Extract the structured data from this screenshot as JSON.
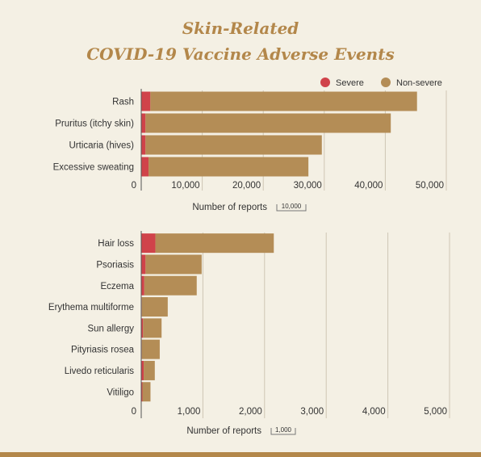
{
  "title_lines": [
    "Skin-Related",
    "COVID-19 Vaccine Adverse Events"
  ],
  "colors": {
    "severe": "#d0434a",
    "non_severe": "#b48d56",
    "grid": "#cfc6b4",
    "text": "#333333"
  },
  "legend": {
    "severe_label": "Severe",
    "non_severe_label": "Non-severe",
    "placement": "top-right"
  },
  "chart_data": [
    {
      "type": "bar",
      "orientation": "horizontal",
      "stacked": true,
      "categories": [
        "Rash",
        "Pruritus (itchy skin)",
        "Urticaria (hives)",
        "Excessive sweating"
      ],
      "series": [
        {
          "name": "Severe",
          "values": [
            1500,
            700,
            700,
            1200
          ]
        },
        {
          "name": "Non-severe",
          "values": [
            43700,
            40200,
            28900,
            26200
          ]
        }
      ],
      "xlabel": "Number of reports",
      "scale_label": "10,000",
      "xlim": [
        0,
        50000
      ],
      "xticks": [
        0,
        10000,
        20000,
        30000,
        40000,
        50000
      ],
      "xtick_labels": [
        "0",
        "10,000",
        "20,000",
        "30,000",
        "40,000",
        "50,000"
      ],
      "grid": true
    },
    {
      "type": "bar",
      "orientation": "horizontal",
      "stacked": true,
      "categories": [
        "Hair loss",
        "Psoriasis",
        "Eczema",
        "Erythema multiforme",
        "Sun allergy",
        "Pityriasis rosea",
        "Livedo reticularis",
        "Vitiligo"
      ],
      "series": [
        {
          "name": "Severe",
          "values": [
            230,
            70,
            50,
            10,
            30,
            10,
            40,
            20
          ]
        },
        {
          "name": "Non-severe",
          "values": [
            1920,
            910,
            850,
            420,
            300,
            290,
            180,
            130
          ]
        }
      ],
      "xlabel": "Number of reports",
      "scale_label": "1,000",
      "xlim": [
        0,
        5000
      ],
      "xticks": [
        0,
        1000,
        2000,
        3000,
        4000,
        5000
      ],
      "xtick_labels": [
        "0",
        "1,000",
        "2,000",
        "3,000",
        "4,000",
        "5,000"
      ],
      "grid": true
    }
  ]
}
